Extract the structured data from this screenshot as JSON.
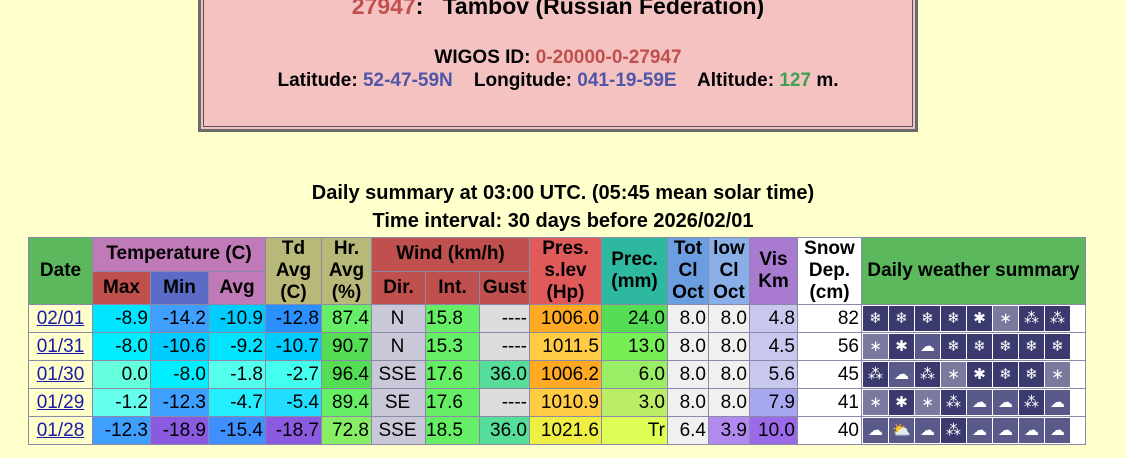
{
  "station": {
    "id": "27947",
    "name": "Tambov (Russian Federation)",
    "wigos_label": "WIGOS ID:",
    "wigos_id": "0-20000-0-27947",
    "lat_label": "Latitude:",
    "lat": "52-47-59N",
    "lon_label": "Longitude:",
    "lon": "041-19-59E",
    "alt_label": "Altitude:",
    "alt": "127",
    "alt_unit": "m."
  },
  "caption": {
    "line1": "Daily summary at 03:00 UTC. (05:45 mean solar time)",
    "line2": "Time interval: 30 days before 2026/02/01"
  },
  "headers": {
    "date": "Date",
    "temp": "Temperature (C)",
    "max": "Max",
    "min": "Min",
    "avg": "Avg",
    "td": "Td Avg (C)",
    "hr": "Hr. Avg (%)",
    "wind": "Wind (km/h)",
    "dir": "Dir.",
    "int": "Int.",
    "gust": "Gust",
    "pres": "Pres. s.lev (Hp)",
    "prec": "Prec. (mm)",
    "tot": "Tot Cl Oct",
    "low": "low Cl Oct",
    "vis": "Vis Km",
    "snow": "Snow Dep. (cm)",
    "daily": "Daily weather summary"
  },
  "rows": [
    {
      "date": "02/01",
      "max": "-8.9",
      "min": "-14.2",
      "avg": "-10.9",
      "td": "-12.8",
      "hr": "87.4",
      "dir": "N",
      "int": "15.8",
      "gust": "----",
      "pres": "1006.0",
      "prec": "24.0",
      "tot": "8.0",
      "low": "8.0",
      "vis": "4.8",
      "snow": "82",
      "colors": {
        "max": "#00e5ff",
        "min": "#3f9fff",
        "avg": "#00ccff",
        "td": "#2a90ff",
        "hr": "#66ee66",
        "pres": "#ffaa22",
        "prec": "#55dd55",
        "vis": "#c8c8ee"
      },
      "icons": [
        "snow-heavy-icon",
        "snow-heavy-icon",
        "snow-heavy-icon",
        "snow-heavy-icon",
        "snow-moderate-icon",
        "snow-light-icon",
        "snow-drift-icon",
        "snow-drift-icon"
      ]
    },
    {
      "date": "01/31",
      "max": "-8.0",
      "min": "-10.6",
      "avg": "-9.2",
      "td": "-10.7",
      "hr": "90.7",
      "dir": "N",
      "int": "15.3",
      "gust": "----",
      "pres": "1011.5",
      "prec": "13.0",
      "tot": "8.0",
      "low": "8.0",
      "vis": "4.5",
      "snow": "56",
      "colors": {
        "max": "#00eeff",
        "min": "#00ccff",
        "avg": "#00e5ff",
        "td": "#00ccff",
        "hr": "#55dd55",
        "pres": "#ffcc44",
        "prec": "#77ee55",
        "vis": "#c8c8ee"
      },
      "icons": [
        "snow-light-icon",
        "snow-moderate-icon",
        "cloud-icon",
        "snow-heavy-icon",
        "snow-heavy-icon",
        "snow-heavy-icon",
        "snow-heavy-icon",
        "snow-heavy-icon"
      ]
    },
    {
      "date": "01/30",
      "max": "0.0",
      "min": "-8.0",
      "avg": "-1.8",
      "td": "-2.7",
      "hr": "96.4",
      "dir": "SSE",
      "int": "17.6",
      "gust": "36.0",
      "pres": "1006.2",
      "prec": "6.0",
      "tot": "8.0",
      "low": "8.0",
      "vis": "5.6",
      "snow": "45",
      "colors": {
        "max": "#66ffdd",
        "min": "#00eeff",
        "avg": "#55ffee",
        "td": "#44ffee",
        "hr": "#55dd55",
        "pres": "#ffaa22",
        "prec": "#99ee66",
        "vis": "#c8c8ee",
        "gust": "#55dd99"
      },
      "icons": [
        "snow-drift-icon",
        "cloud-icon",
        "snow-drift-icon",
        "snow-light-icon",
        "snow-moderate-icon",
        "snow-heavy-icon",
        "snow-heavy-icon",
        "snow-light-icon"
      ]
    },
    {
      "date": "01/29",
      "max": "-1.2",
      "min": "-12.3",
      "avg": "-4.7",
      "td": "-5.4",
      "hr": "89.4",
      "dir": "SE",
      "int": "17.6",
      "gust": "----",
      "pres": "1010.9",
      "prec": "3.0",
      "tot": "8.0",
      "low": "8.0",
      "vis": "7.9",
      "snow": "41",
      "colors": {
        "max": "#66ffee",
        "min": "#3f9fff",
        "avg": "#22eeff",
        "td": "#22ddff",
        "hr": "#66ee66",
        "pres": "#ffcc44",
        "prec": "#bbee66",
        "vis": "#a8a8f0"
      },
      "icons": [
        "snow-light-icon",
        "snow-moderate-icon",
        "snow-light-icon",
        "snow-drift-icon",
        "cloud-icon",
        "cloud-icon",
        "snow-drift-icon",
        "cloud-icon"
      ]
    },
    {
      "date": "01/28",
      "max": "-12.3",
      "min": "-18.9",
      "avg": "-15.4",
      "td": "-18.7",
      "hr": "72.8",
      "dir": "SSE",
      "int": "18.5",
      "gust": "36.0",
      "pres": "1021.6",
      "prec": "Tr",
      "tot": "6.4",
      "low": "3.9",
      "vis": "10.0",
      "snow": "40",
      "colors": {
        "max": "#3f9fff",
        "min": "#8a5ae0",
        "avg": "#3f8fff",
        "td": "#8a5ae0",
        "hr": "#88ee66",
        "pres": "#eeee44",
        "prec": "#ddff55",
        "vis": "#9a6ae8",
        "gust": "#55dd99",
        "low": "#b08aee"
      },
      "icons": [
        "cloud-icon",
        "sun-cloud-icon",
        "cloud-icon",
        "snow-drift-icon",
        "cloud-icon",
        "cloud-icon",
        "cloud-icon",
        "cloud-icon"
      ]
    }
  ],
  "icon_glyphs": {
    "snow-heavy-icon": "❄",
    "snow-moderate-icon": "✱",
    "snow-light-icon": "∗",
    "snow-drift-icon": "⁂",
    "cloud-icon": "☁",
    "sun-cloud-icon": "⛅"
  }
}
